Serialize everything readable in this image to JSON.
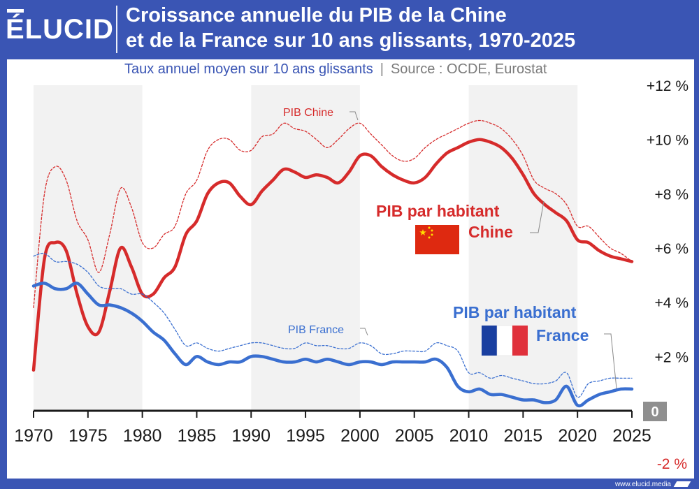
{
  "header": {
    "logo": "ÉLUCID",
    "title_line1": "Croissance annuelle du PIB de la Chine",
    "title_line2": "et de la France sur 10 ans glissants, 1970-2025",
    "subtitle": "Taux annuel moyen sur 10 ans glissants",
    "separator": "|",
    "source": "Source : OCDE, Eurostat"
  },
  "footer": {
    "url": "www.elucid.media"
  },
  "colors": {
    "china": "#d62b2b",
    "france": "#3a6fd0",
    "brand": "#3a55b4",
    "shade": "#f2f2f2",
    "axis_dark": "#1a1a1a"
  },
  "chart_data": {
    "type": "line",
    "title": "Croissance annuelle du PIB de la Chine et de la France sur 10 ans glissants, 1970-2025",
    "subtitle": "Taux annuel moyen sur 10 ans glissants",
    "xlim": [
      1970,
      2025
    ],
    "ylim": [
      -2,
      12
    ],
    "x_ticks": [
      1970,
      1975,
      1980,
      1985,
      1990,
      1995,
      2000,
      2005,
      2010,
      2015,
      2020,
      2025
    ],
    "y_ticks": [
      {
        "value": 12,
        "label": "+12 %"
      },
      {
        "value": 10,
        "label": "+10 %"
      },
      {
        "value": 8,
        "label": "+8 %"
      },
      {
        "value": 6,
        "label": "+6 %"
      },
      {
        "value": 4,
        "label": "+4 %"
      },
      {
        "value": 2,
        "label": "+2 %"
      },
      {
        "value": 0,
        "label": "0"
      },
      {
        "value": -2,
        "label": "-2 %"
      }
    ],
    "y_axis_side": "right",
    "shaded_decades": [
      [
        1970,
        1980
      ],
      [
        1990,
        2000
      ],
      [
        2010,
        2020
      ]
    ],
    "x": [
      1970,
      1971,
      1972,
      1973,
      1974,
      1975,
      1976,
      1977,
      1978,
      1979,
      1980,
      1981,
      1982,
      1983,
      1984,
      1985,
      1986,
      1987,
      1988,
      1989,
      1990,
      1991,
      1992,
      1993,
      1994,
      1995,
      1996,
      1997,
      1998,
      1999,
      2000,
      2001,
      2002,
      2003,
      2004,
      2005,
      2006,
      2007,
      2008,
      2009,
      2010,
      2011,
      2012,
      2013,
      2014,
      2015,
      2016,
      2017,
      2018,
      2019,
      2020,
      2021,
      2022,
      2023,
      2024,
      2025
    ],
    "series": [
      {
        "name": "PIB Chine",
        "label": "PIB Chine",
        "color": "#d62b2b",
        "style": "dashed",
        "values": [
          3.8,
          8.0,
          9.0,
          8.5,
          7.0,
          6.3,
          5.1,
          6.5,
          8.2,
          7.5,
          6.2,
          6.0,
          6.5,
          6.8,
          8.0,
          8.5,
          9.6,
          10.0,
          10.0,
          9.6,
          9.6,
          10.1,
          10.2,
          10.6,
          10.4,
          10.3,
          10.0,
          9.7,
          10.0,
          10.4,
          10.6,
          10.2,
          9.8,
          9.4,
          9.2,
          9.3,
          9.7,
          10.0,
          10.2,
          10.4,
          10.6,
          10.7,
          10.6,
          10.4,
          10.0,
          9.4,
          8.5,
          8.2,
          8.0,
          7.6,
          6.8,
          6.8,
          6.4,
          6.0,
          5.8,
          5.5
        ]
      },
      {
        "name": "PIB par habitant Chine",
        "label_line1": "PIB par habitant",
        "label_line2": "Chine",
        "color": "#d62b2b",
        "style": "solid",
        "values": [
          1.5,
          5.6,
          6.2,
          5.9,
          4.3,
          3.1,
          2.9,
          4.4,
          6.0,
          5.3,
          4.3,
          4.3,
          4.9,
          5.3,
          6.5,
          7.0,
          8.0,
          8.4,
          8.4,
          7.9,
          7.6,
          8.1,
          8.5,
          8.9,
          8.8,
          8.6,
          8.7,
          8.6,
          8.4,
          8.8,
          9.4,
          9.4,
          9.0,
          8.7,
          8.5,
          8.4,
          8.6,
          9.1,
          9.5,
          9.7,
          9.9,
          10.0,
          9.9,
          9.7,
          9.3,
          8.7,
          8.0,
          7.6,
          7.3,
          7.0,
          6.3,
          6.2,
          5.9,
          5.7,
          5.6,
          5.5
        ]
      },
      {
        "name": "PIB France",
        "label": "PIB France",
        "color": "#3a6fd0",
        "style": "dashed",
        "values": [
          5.7,
          5.8,
          5.5,
          5.5,
          5.4,
          5.1,
          4.6,
          4.5,
          4.5,
          4.3,
          4.3,
          4.0,
          3.6,
          3.0,
          2.4,
          2.5,
          2.3,
          2.2,
          2.3,
          2.4,
          2.5,
          2.5,
          2.4,
          2.3,
          2.3,
          2.5,
          2.4,
          2.4,
          2.3,
          2.3,
          2.5,
          2.4,
          2.1,
          2.1,
          2.2,
          2.2,
          2.2,
          2.5,
          2.4,
          2.2,
          1.4,
          1.4,
          1.2,
          1.3,
          1.2,
          1.1,
          1.0,
          1.0,
          1.1,
          1.4,
          0.5,
          1.0,
          1.1,
          1.2,
          1.2,
          1.2
        ]
      },
      {
        "name": "PIB par habitant France",
        "label_line1": "PIB par habitant",
        "label_line2": "France",
        "color": "#3a6fd0",
        "style": "solid",
        "values": [
          4.6,
          4.7,
          4.5,
          4.5,
          4.7,
          4.3,
          3.9,
          3.9,
          3.8,
          3.6,
          3.3,
          2.9,
          2.6,
          2.1,
          1.7,
          2.0,
          1.8,
          1.7,
          1.8,
          1.8,
          2.0,
          2.0,
          1.9,
          1.8,
          1.8,
          1.9,
          1.8,
          1.9,
          1.8,
          1.7,
          1.8,
          1.8,
          1.7,
          1.8,
          1.8,
          1.8,
          1.8,
          1.9,
          1.6,
          0.9,
          0.7,
          0.8,
          0.6,
          0.6,
          0.5,
          0.4,
          0.4,
          0.3,
          0.4,
          0.9,
          0.2,
          0.4,
          0.6,
          0.7,
          0.8,
          0.8
        ]
      }
    ]
  }
}
